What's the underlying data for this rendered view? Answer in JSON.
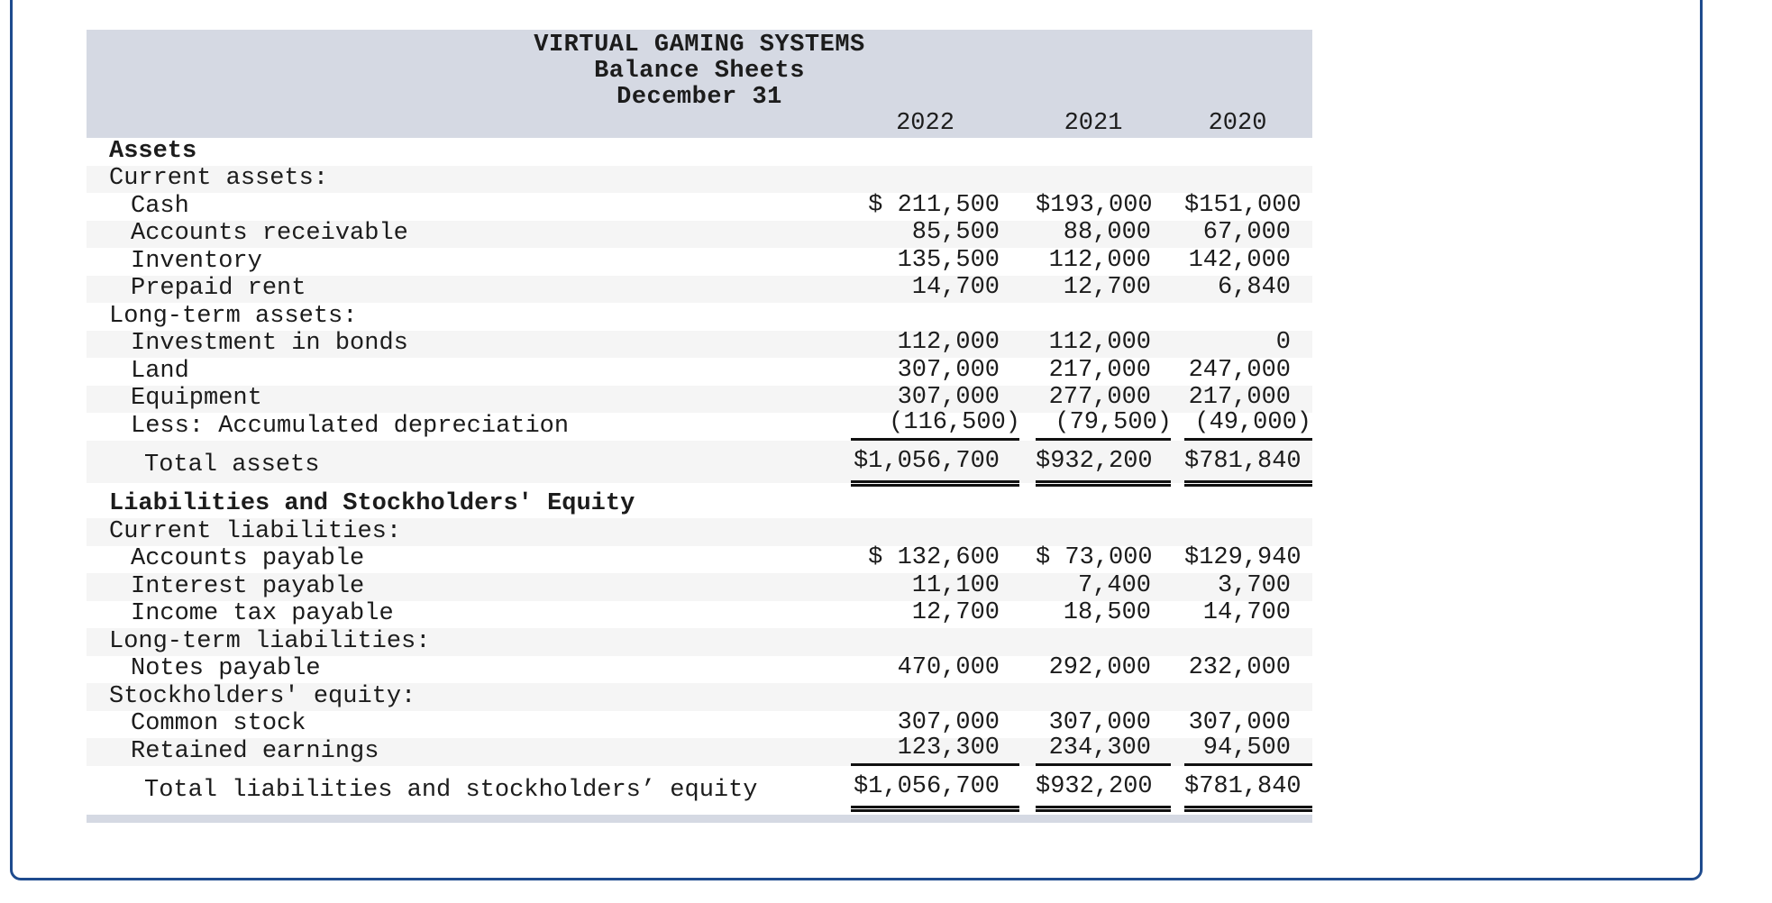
{
  "colors": {
    "frame_border": "#1e4b8e",
    "header_band": "#d5d9e3",
    "zebra_stripe": "#f5f5f5",
    "rule": "#111111",
    "text": "#1c1c1c"
  },
  "sheet": {
    "title_lines": [
      "VIRTUAL GAMING SYSTEMS",
      "Balance Sheets",
      "December 31"
    ],
    "year_headers": [
      "2022",
      "2021",
      "2020"
    ],
    "rows": [
      {
        "label": "Assets",
        "indent": 0,
        "bold": true,
        "striped": false,
        "underline": "none",
        "total": false,
        "gap_before": false,
        "paren": false,
        "values": [
          "",
          "",
          ""
        ]
      },
      {
        "label": "Current assets:",
        "indent": 0,
        "bold": false,
        "striped": true,
        "underline": "none",
        "total": false,
        "gap_before": false,
        "paren": false,
        "values": [
          "",
          "",
          ""
        ]
      },
      {
        "label": "Cash",
        "indent": 1,
        "bold": false,
        "striped": false,
        "underline": "none",
        "total": false,
        "gap_before": false,
        "paren": false,
        "values": [
          "$ 211,500",
          "$193,000",
          "$151,000"
        ]
      },
      {
        "label": "Accounts receivable",
        "indent": 1,
        "bold": false,
        "striped": true,
        "underline": "none",
        "total": false,
        "gap_before": false,
        "paren": false,
        "values": [
          "85,500",
          "88,000",
          "67,000"
        ]
      },
      {
        "label": "Inventory",
        "indent": 1,
        "bold": false,
        "striped": false,
        "underline": "none",
        "total": false,
        "gap_before": false,
        "paren": false,
        "values": [
          "135,500",
          "112,000",
          "142,000"
        ]
      },
      {
        "label": "Prepaid rent",
        "indent": 1,
        "bold": false,
        "striped": true,
        "underline": "none",
        "total": false,
        "gap_before": false,
        "paren": false,
        "values": [
          "14,700",
          "12,700",
          "6,840"
        ]
      },
      {
        "label": "Long-term assets:",
        "indent": 0,
        "bold": false,
        "striped": false,
        "underline": "none",
        "total": false,
        "gap_before": false,
        "paren": false,
        "values": [
          "",
          "",
          ""
        ]
      },
      {
        "label": "Investment in bonds",
        "indent": 1,
        "bold": false,
        "striped": true,
        "underline": "none",
        "total": false,
        "gap_before": false,
        "paren": false,
        "values": [
          "112,000",
          "112,000",
          "0"
        ]
      },
      {
        "label": "Land",
        "indent": 1,
        "bold": false,
        "striped": false,
        "underline": "none",
        "total": false,
        "gap_before": false,
        "paren": false,
        "values": [
          "307,000",
          "217,000",
          "247,000"
        ]
      },
      {
        "label": "Equipment",
        "indent": 1,
        "bold": false,
        "striped": true,
        "underline": "none",
        "total": false,
        "gap_before": false,
        "paren": false,
        "values": [
          "307,000",
          "277,000",
          "217,000"
        ]
      },
      {
        "label": "Less: Accumulated depreciation",
        "indent": 1,
        "bold": false,
        "striped": false,
        "underline": "single",
        "total": false,
        "gap_before": false,
        "paren": true,
        "values": [
          "(116,500)",
          "(79,500)",
          "(49,000)"
        ]
      },
      {
        "label": "Total assets",
        "indent": 2,
        "bold": false,
        "striped": true,
        "underline": "double",
        "total": true,
        "gap_before": false,
        "paren": false,
        "values": [
          "$1,056,700",
          "$932,200",
          "$781,840"
        ]
      },
      {
        "label": "Liabilities and Stockholders' Equity",
        "indent": 0,
        "bold": true,
        "striped": false,
        "underline": "none",
        "total": false,
        "gap_before": true,
        "paren": false,
        "values": [
          "",
          "",
          ""
        ]
      },
      {
        "label": "Current liabilities:",
        "indent": 0,
        "bold": false,
        "striped": true,
        "underline": "none",
        "total": false,
        "gap_before": false,
        "paren": false,
        "values": [
          "",
          "",
          ""
        ]
      },
      {
        "label": "Accounts payable",
        "indent": 1,
        "bold": false,
        "striped": false,
        "underline": "none",
        "total": false,
        "gap_before": false,
        "paren": false,
        "values": [
          "$ 132,600",
          "$ 73,000",
          "$129,940"
        ]
      },
      {
        "label": "Interest payable",
        "indent": 1,
        "bold": false,
        "striped": true,
        "underline": "none",
        "total": false,
        "gap_before": false,
        "paren": false,
        "values": [
          "11,100",
          "7,400",
          "3,700"
        ]
      },
      {
        "label": "Income tax payable",
        "indent": 1,
        "bold": false,
        "striped": false,
        "underline": "none",
        "total": false,
        "gap_before": false,
        "paren": false,
        "values": [
          "12,700",
          "18,500",
          "14,700"
        ]
      },
      {
        "label": "Long-term liabilities:",
        "indent": 0,
        "bold": false,
        "striped": true,
        "underline": "none",
        "total": false,
        "gap_before": false,
        "paren": false,
        "values": [
          "",
          "",
          ""
        ]
      },
      {
        "label": "Notes payable",
        "indent": 1,
        "bold": false,
        "striped": false,
        "underline": "none",
        "total": false,
        "gap_before": false,
        "paren": false,
        "values": [
          "470,000",
          "292,000",
          "232,000"
        ]
      },
      {
        "label": "Stockholders' equity:",
        "indent": 0,
        "bold": false,
        "striped": true,
        "underline": "none",
        "total": false,
        "gap_before": false,
        "paren": false,
        "values": [
          "",
          "",
          ""
        ]
      },
      {
        "label": "Common stock",
        "indent": 1,
        "bold": false,
        "striped": false,
        "underline": "none",
        "total": false,
        "gap_before": false,
        "paren": false,
        "values": [
          "307,000",
          "307,000",
          "307,000"
        ]
      },
      {
        "label": "Retained earnings",
        "indent": 1,
        "bold": false,
        "striped": true,
        "underline": "single",
        "total": false,
        "gap_before": false,
        "paren": false,
        "values": [
          "123,300",
          "234,300",
          "94,500"
        ]
      },
      {
        "label": "Total liabilities and stockholders’ equity",
        "indent": 2,
        "bold": false,
        "striped": false,
        "underline": "double",
        "total": true,
        "gap_before": false,
        "paren": false,
        "values": [
          "$1,056,700",
          "$932,200",
          "$781,840"
        ]
      }
    ]
  }
}
